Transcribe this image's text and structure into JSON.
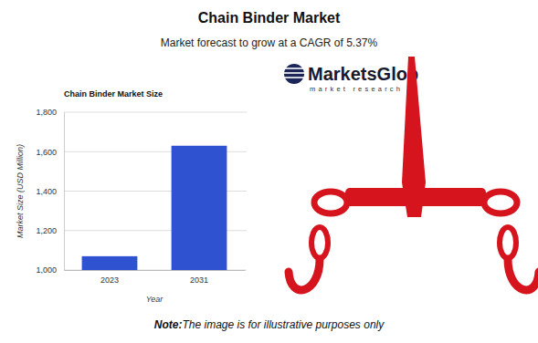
{
  "chart_data": {
    "type": "bar",
    "title": "Chain Binder Market",
    "subtitle": "Market forecast to grow at a CAGR of 5.37%",
    "plot_title": "Chain Binder Market Size",
    "x_label": "Year",
    "y_label": "Market Size (USD Million)",
    "categories": [
      "2023",
      "2031"
    ],
    "values": [
      1070,
      1630
    ],
    "color": "#2f52d1",
    "ylim": [
      1000,
      1800
    ],
    "yticks": [
      {
        "value": 1000,
        "label": "1,000"
      },
      {
        "value": 1200,
        "label": "1,200"
      },
      {
        "value": 1400,
        "label": "1,400"
      },
      {
        "value": 1600,
        "label": "1,600"
      },
      {
        "value": 1800,
        "label": "1,800"
      }
    ],
    "grid": true,
    "logo": {
      "name": "MarketsGlob",
      "tagline": "market research"
    },
    "note": {
      "label": "Note:",
      "text": "The image is for illustrative purposes only"
    }
  }
}
